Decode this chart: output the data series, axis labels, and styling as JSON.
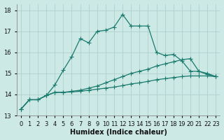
{
  "xlabel": "Humidex (Indice chaleur)",
  "xlim": [
    -0.5,
    23.5
  ],
  "ylim": [
    13.0,
    18.3
  ],
  "background_color": "#cce9e5",
  "grid_color": "#aaccca",
  "line_color": "#1a7a6e",
  "x": [
    0,
    1,
    2,
    3,
    4,
    5,
    6,
    7,
    8,
    9,
    10,
    11,
    12,
    13,
    14,
    15,
    16,
    17,
    18,
    19,
    20,
    21,
    22,
    23
  ],
  "line1": [
    13.3,
    13.75,
    13.75,
    13.95,
    14.45,
    15.15,
    15.8,
    16.65,
    16.45,
    17.0,
    17.05,
    17.2,
    17.8,
    17.25,
    17.25,
    17.25,
    16.0,
    15.85,
    15.9,
    15.6,
    15.1,
    15.1,
    14.95,
    14.85
  ],
  "line2": [
    13.3,
    13.75,
    13.75,
    13.95,
    14.1,
    14.1,
    14.15,
    14.2,
    14.3,
    14.4,
    14.55,
    14.7,
    14.85,
    15.0,
    15.1,
    15.2,
    15.35,
    15.45,
    15.55,
    15.65,
    15.7,
    15.1,
    15.0,
    14.85
  ],
  "line3": [
    13.3,
    13.75,
    13.75,
    13.95,
    14.1,
    14.1,
    14.12,
    14.15,
    14.2,
    14.25,
    14.3,
    14.35,
    14.42,
    14.5,
    14.55,
    14.62,
    14.7,
    14.75,
    14.8,
    14.85,
    14.88,
    14.88,
    14.88,
    14.85
  ],
  "xticks": [
    0,
    1,
    2,
    3,
    4,
    5,
    6,
    7,
    8,
    9,
    10,
    11,
    12,
    13,
    14,
    15,
    16,
    17,
    18,
    19,
    20,
    21,
    22,
    23
  ],
  "yticks": [
    13,
    14,
    15,
    16,
    17,
    18
  ],
  "axis_fontsize": 7,
  "tick_fontsize": 6
}
